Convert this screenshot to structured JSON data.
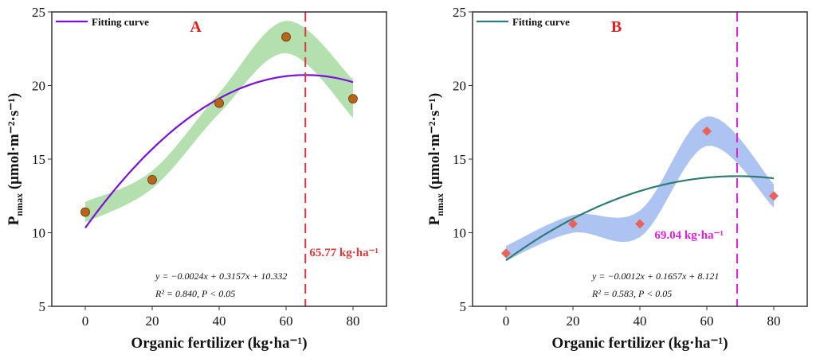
{
  "chart_data": [
    {
      "type": "scatter",
      "panel_label": "A",
      "xlabel": "Organic fertilizer (kg·ha⁻¹)",
      "ylabel": "Pnmax (μmol·m⁻²·s⁻¹)",
      "ylabel_main": "P",
      "ylabel_sub": "nmax",
      "ylabel_unit": " (μmol·m⁻²·s⁻¹)",
      "xlim": [
        -10,
        90
      ],
      "ylim": [
        5,
        25
      ],
      "xticks": [
        "0",
        "20",
        "40",
        "60",
        "80"
      ],
      "yticks": [
        "5",
        "10",
        "15",
        "20",
        "25"
      ],
      "x": [
        0,
        20,
        40,
        60,
        80
      ],
      "y": [
        11.4,
        13.6,
        18.8,
        23.3,
        19.1
      ],
      "band_halfwidth": [
        0.7,
        0.6,
        0.7,
        1.1,
        1.3
      ],
      "fit": {
        "a": -0.0024,
        "b": 0.3157,
        "c": 10.332,
        "color": "#7b10d8",
        "name": "Fitting curve"
      },
      "vline": {
        "x": 65.77,
        "label": "65.77 kg·ha⁻¹",
        "color": "#d93a3a"
      },
      "equation": "y = −0.0024x + 0.3157x + 10.332",
      "stats": "R² = 0.840, P < 0.05",
      "marker": "circle",
      "marker_color": "#b8651a",
      "band_color": "#a6dba0",
      "label_color": "#e02020"
    },
    {
      "type": "scatter",
      "panel_label": "B",
      "xlabel": "Organic fertilizer (kg·ha⁻¹)",
      "ylabel": "Pnmax (μmol·m⁻²·s⁻¹)",
      "ylabel_main": "P",
      "ylabel_sub": "nmax",
      "ylabel_unit": " (μmol·m⁻²·s⁻¹)",
      "xlim": [
        -10,
        90
      ],
      "ylim": [
        5,
        25
      ],
      "xticks": [
        "0",
        "20",
        "40",
        "60",
        "80"
      ],
      "yticks": [
        "5",
        "10",
        "15",
        "20",
        "25"
      ],
      "x": [
        0,
        20,
        40,
        60,
        80
      ],
      "y": [
        8.6,
        10.6,
        10.6,
        16.9,
        12.5
      ],
      "band_halfwidth": [
        0.5,
        0.6,
        0.9,
        1.0,
        0.8
      ],
      "fit": {
        "a": -0.0012,
        "b": 0.1657,
        "c": 8.121,
        "color": "#2e7d74",
        "name": "Fitting curve"
      },
      "vline": {
        "x": 69.04,
        "label": "69.04 kg·ha⁻¹",
        "color": "#e020e0"
      },
      "equation": "y = −0.0012x + 0.1657x + 8.121",
      "stats": "R² = 0.583, P < 0.05",
      "marker": "diamond",
      "marker_color": "#e8645a",
      "band_color": "#9fb8f0",
      "label_color": "#e02020"
    }
  ]
}
